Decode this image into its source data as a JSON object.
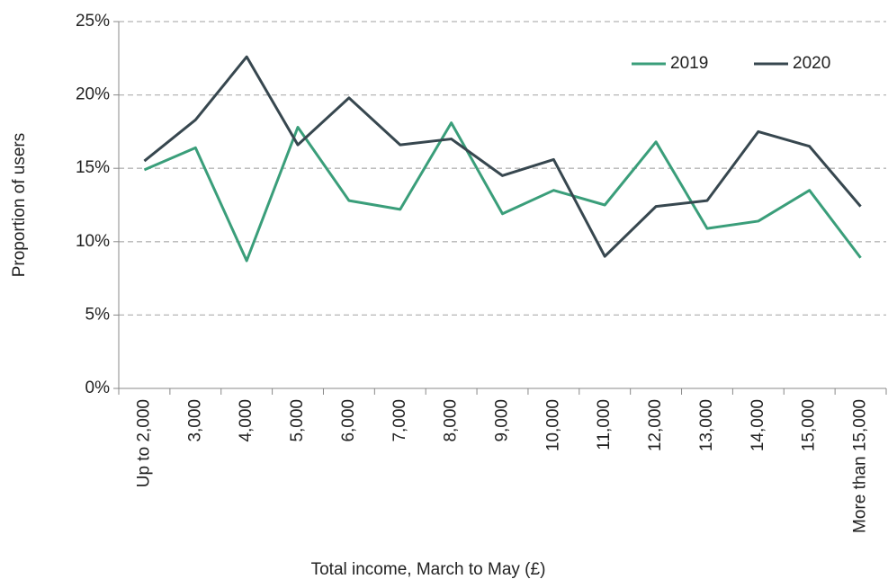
{
  "chart_data": {
    "type": "line",
    "x_label": "Total income, March to May (£)",
    "y_label": "Proportion of users",
    "categories": [
      "Up to 2,000",
      "3,000",
      "4,000",
      "5,000",
      "6,000",
      "7,000",
      "8,000",
      "9,000",
      "10,000",
      "11,000",
      "12,000",
      "13,000",
      "14,000",
      "15,000",
      "More than 15,000"
    ],
    "series": [
      {
        "name": "2019",
        "color": "#3a9e7a",
        "values": [
          14.9,
          16.4,
          8.7,
          17.8,
          12.8,
          12.2,
          18.1,
          11.9,
          13.5,
          12.5,
          16.8,
          10.9,
          11.4,
          13.5,
          8.9
        ]
      },
      {
        "name": "2020",
        "color": "#37474f",
        "values": [
          15.5,
          18.3,
          22.6,
          16.6,
          19.8,
          16.6,
          17.0,
          14.5,
          15.6,
          9.0,
          12.4,
          12.8,
          17.5,
          16.5,
          12.4
        ]
      }
    ],
    "ylim": [
      0,
      25
    ],
    "yticks": [
      {
        "value": 0,
        "label": "0%"
      },
      {
        "value": 5,
        "label": "5%"
      },
      {
        "value": 10,
        "label": "10%"
      },
      {
        "value": 15,
        "label": "15%"
      },
      {
        "value": 20,
        "label": "20%"
      },
      {
        "value": 25,
        "label": "25%"
      }
    ],
    "grid": true,
    "legend": "top-right"
  }
}
